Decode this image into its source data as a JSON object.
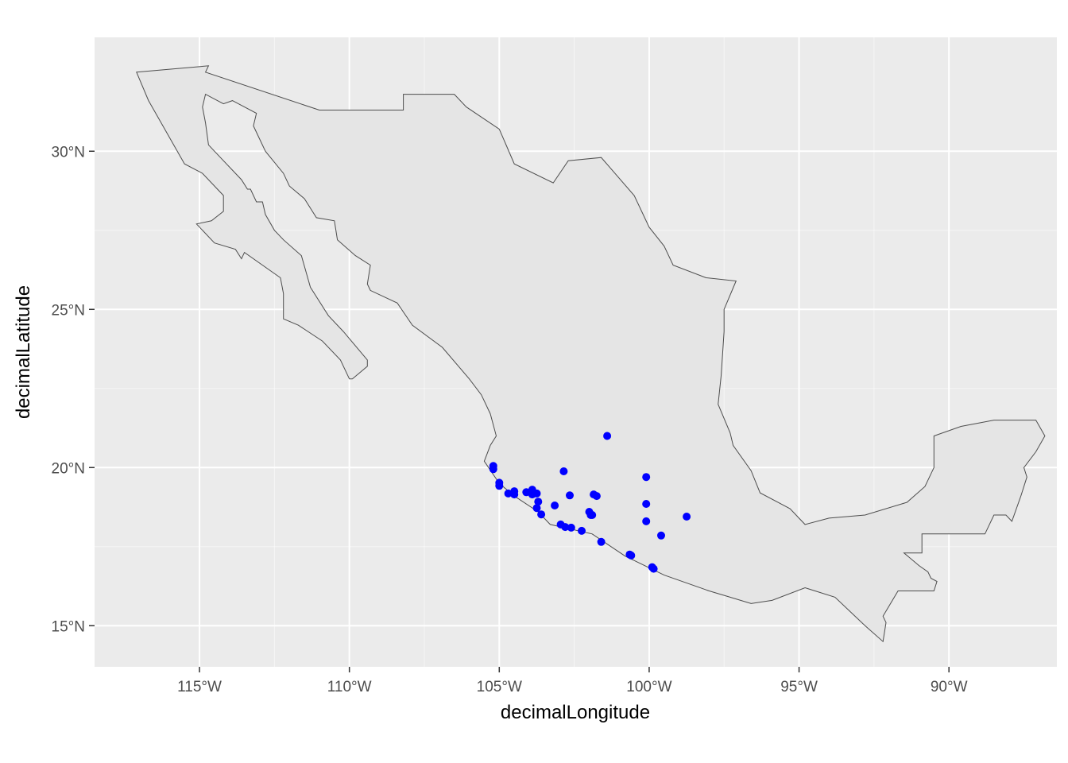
{
  "chart_data": {
    "type": "scatter",
    "title": "",
    "xlabel": "decimalLongitude",
    "ylabel": "decimalLatitude",
    "xlim": [
      -118.5,
      -86.4
    ],
    "ylim": [
      13.7,
      33.6
    ],
    "grid": true,
    "x_ticks": [
      {
        "value": -115,
        "label": "115°W"
      },
      {
        "value": -110,
        "label": "110°W"
      },
      {
        "value": -105,
        "label": "105°W"
      },
      {
        "value": -100,
        "label": "100°W"
      },
      {
        "value": -95,
        "label": "95°W"
      },
      {
        "value": -90,
        "label": "90°W"
      }
    ],
    "y_ticks": [
      {
        "value": 15,
        "label": "15°N"
      },
      {
        "value": 20,
        "label": "20°N"
      },
      {
        "value": 25,
        "label": "25°N"
      },
      {
        "value": 30,
        "label": "30°N"
      }
    ],
    "colors": {
      "panel_background": "#ebebeb",
      "grid": "#ffffff",
      "land_fill": "#e5e5e5",
      "land_outline": "#4d4d4d",
      "points": "#0000ff"
    },
    "base_map": {
      "country": "Mexico",
      "mainland": [
        [
          -117.1,
          32.5
        ],
        [
          -114.7,
          32.7
        ],
        [
          -114.8,
          32.5
        ],
        [
          -111.0,
          31.3
        ],
        [
          -108.2,
          31.3
        ],
        [
          -108.2,
          31.8
        ],
        [
          -106.5,
          31.8
        ],
        [
          -106.1,
          31.4
        ],
        [
          -105.0,
          30.7
        ],
        [
          -104.5,
          29.6
        ],
        [
          -103.2,
          29.0
        ],
        [
          -102.7,
          29.7
        ],
        [
          -101.6,
          29.8
        ],
        [
          -100.5,
          28.6
        ],
        [
          -100.0,
          27.6
        ],
        [
          -99.5,
          27.0
        ],
        [
          -99.2,
          26.4
        ],
        [
          -98.1,
          26.0
        ],
        [
          -97.1,
          25.9
        ],
        [
          -97.5,
          25.0
        ],
        [
          -97.5,
          24.3
        ],
        [
          -97.6,
          22.9
        ],
        [
          -97.7,
          22.0
        ],
        [
          -97.3,
          21.1
        ],
        [
          -97.2,
          20.7
        ],
        [
          -96.6,
          19.9
        ],
        [
          -96.3,
          19.2
        ],
        [
          -95.3,
          18.7
        ],
        [
          -94.8,
          18.2
        ],
        [
          -94.0,
          18.4
        ],
        [
          -92.8,
          18.5
        ],
        [
          -91.4,
          18.9
        ],
        [
          -90.8,
          19.4
        ],
        [
          -90.5,
          20.0
        ],
        [
          -90.5,
          21.0
        ],
        [
          -89.6,
          21.3
        ],
        [
          -88.5,
          21.5
        ],
        [
          -87.7,
          21.5
        ],
        [
          -87.1,
          21.5
        ],
        [
          -86.8,
          21.0
        ],
        [
          -87.1,
          20.5
        ],
        [
          -87.5,
          20.0
        ],
        [
          -87.4,
          19.7
        ],
        [
          -87.6,
          19.1
        ],
        [
          -87.9,
          18.3
        ],
        [
          -88.1,
          18.5
        ],
        [
          -88.3,
          18.5
        ],
        [
          -88.5,
          18.5
        ],
        [
          -88.8,
          17.9
        ],
        [
          -89.1,
          17.9
        ],
        [
          -90.9,
          17.9
        ],
        [
          -90.9,
          17.3
        ],
        [
          -91.5,
          17.3
        ],
        [
          -91.0,
          16.9
        ],
        [
          -90.7,
          16.7
        ],
        [
          -90.6,
          16.5
        ],
        [
          -90.4,
          16.4
        ],
        [
          -90.5,
          16.1
        ],
        [
          -91.7,
          16.1
        ],
        [
          -92.2,
          15.3
        ],
        [
          -92.1,
          15.1
        ],
        [
          -92.2,
          14.5
        ],
        [
          -92.8,
          15.0
        ],
        [
          -93.8,
          15.9
        ],
        [
          -94.8,
          16.2
        ],
        [
          -95.9,
          15.8
        ],
        [
          -96.6,
          15.7
        ],
        [
          -97.3,
          15.9
        ],
        [
          -98.0,
          16.1
        ],
        [
          -99.5,
          16.6
        ],
        [
          -100.8,
          17.2
        ],
        [
          -101.9,
          17.9
        ],
        [
          -103.3,
          18.2
        ],
        [
          -103.7,
          18.6
        ],
        [
          -104.5,
          19.1
        ],
        [
          -105.0,
          19.5
        ],
        [
          -105.5,
          20.2
        ],
        [
          -105.3,
          20.7
        ],
        [
          -105.1,
          21.0
        ],
        [
          -105.3,
          21.7
        ],
        [
          -105.6,
          22.3
        ],
        [
          -106.0,
          22.8
        ],
        [
          -106.9,
          23.8
        ],
        [
          -107.9,
          24.5
        ],
        [
          -108.4,
          25.2
        ],
        [
          -109.3,
          25.6
        ],
        [
          -109.4,
          25.8
        ],
        [
          -109.3,
          26.4
        ],
        [
          -109.8,
          26.7
        ],
        [
          -110.4,
          27.2
        ],
        [
          -110.5,
          27.8
        ],
        [
          -111.1,
          27.9
        ],
        [
          -111.5,
          28.5
        ],
        [
          -112.0,
          28.9
        ],
        [
          -112.2,
          29.3
        ],
        [
          -112.8,
          30.0
        ],
        [
          -113.2,
          30.8
        ],
        [
          -113.1,
          31.2
        ],
        [
          -113.9,
          31.6
        ],
        [
          -114.2,
          31.5
        ],
        [
          -114.8,
          31.8
        ],
        [
          -114.9,
          31.4
        ],
        [
          -114.8,
          30.9
        ],
        [
          -114.7,
          30.2
        ],
        [
          -114.3,
          29.8
        ],
        [
          -113.6,
          29.1
        ],
        [
          -113.4,
          28.8
        ],
        [
          -113.3,
          28.8
        ],
        [
          -113.1,
          28.4
        ],
        [
          -112.9,
          28.4
        ],
        [
          -112.8,
          28.0
        ],
        [
          -112.5,
          27.5
        ],
        [
          -112.2,
          27.2
        ],
        [
          -111.6,
          26.7
        ],
        [
          -111.3,
          25.7
        ],
        [
          -110.7,
          24.8
        ],
        [
          -110.2,
          24.3
        ],
        [
          -109.4,
          23.4
        ],
        [
          -109.4,
          23.2
        ],
        [
          -109.9,
          22.8
        ],
        [
          -110.0,
          22.8
        ],
        [
          -110.3,
          23.4
        ],
        [
          -110.9,
          24.0
        ],
        [
          -111.7,
          24.5
        ],
        [
          -112.2,
          24.7
        ],
        [
          -112.2,
          25.5
        ],
        [
          -112.3,
          26.0
        ],
        [
          -113.5,
          26.8
        ],
        [
          -113.6,
          26.6
        ],
        [
          -113.8,
          26.9
        ],
        [
          -114.5,
          27.1
        ],
        [
          -115.1,
          27.7
        ],
        [
          -114.6,
          27.8
        ],
        [
          -114.2,
          28.1
        ],
        [
          -114.2,
          28.6
        ],
        [
          -114.9,
          29.3
        ],
        [
          -115.5,
          29.6
        ],
        [
          -116.7,
          31.6
        ],
        [
          -117.1,
          32.5
        ]
      ]
    },
    "points": [
      {
        "x": -101.4,
        "y": 21.0
      },
      {
        "x": -105.2,
        "y": 20.05
      },
      {
        "x": -105.2,
        "y": 19.95
      },
      {
        "x": -102.85,
        "y": 19.88
      },
      {
        "x": -100.1,
        "y": 19.7
      },
      {
        "x": -105.0,
        "y": 19.52
      },
      {
        "x": -105.0,
        "y": 19.42
      },
      {
        "x": -104.7,
        "y": 19.18
      },
      {
        "x": -104.5,
        "y": 19.25
      },
      {
        "x": -104.5,
        "y": 19.15
      },
      {
        "x": -104.1,
        "y": 19.22
      },
      {
        "x": -103.9,
        "y": 19.3
      },
      {
        "x": -103.9,
        "y": 19.15
      },
      {
        "x": -103.75,
        "y": 19.18
      },
      {
        "x": -102.65,
        "y": 19.12
      },
      {
        "x": -101.85,
        "y": 19.15
      },
      {
        "x": -101.75,
        "y": 19.1
      },
      {
        "x": -103.7,
        "y": 18.92
      },
      {
        "x": -103.75,
        "y": 18.72
      },
      {
        "x": -103.6,
        "y": 18.52
      },
      {
        "x": -103.15,
        "y": 18.8
      },
      {
        "x": -102.0,
        "y": 18.6
      },
      {
        "x": -101.95,
        "y": 18.5
      },
      {
        "x": -101.9,
        "y": 18.5
      },
      {
        "x": -100.1,
        "y": 18.85
      },
      {
        "x": -98.75,
        "y": 18.45
      },
      {
        "x": -100.1,
        "y": 18.3
      },
      {
        "x": -102.95,
        "y": 18.2
      },
      {
        "x": -102.8,
        "y": 18.12
      },
      {
        "x": -102.6,
        "y": 18.1
      },
      {
        "x": -102.25,
        "y": 18.0
      },
      {
        "x": -99.6,
        "y": 17.85
      },
      {
        "x": -101.6,
        "y": 17.65
      },
      {
        "x": -100.65,
        "y": 17.25
      },
      {
        "x": -100.6,
        "y": 17.22
      },
      {
        "x": -99.9,
        "y": 16.85
      },
      {
        "x": -99.85,
        "y": 16.8
      }
    ]
  }
}
